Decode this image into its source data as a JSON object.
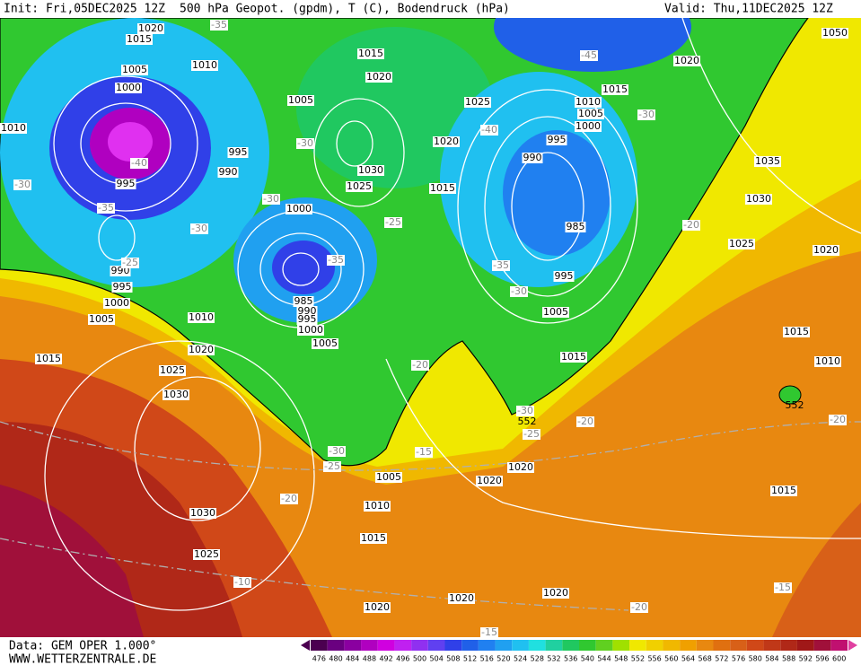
{
  "header": {
    "init": "Init: Fri,05DEC2025 12Z",
    "title": "500 hPa Geopot. (gpdm), T (C), Bodendruck (hPa)",
    "valid": "Valid: Thu,11DEC2025 12Z"
  },
  "footer": {
    "data": "Data: GEM OPER 1.000°",
    "site": "WWW.WETTERZENTRALE.DE"
  },
  "scale": {
    "labels": [
      476,
      480,
      484,
      488,
      492,
      496,
      500,
      504,
      508,
      512,
      516,
      520,
      524,
      528,
      532,
      536,
      540,
      544,
      548,
      552,
      556,
      560,
      564,
      568,
      572,
      576,
      580,
      584,
      588,
      592,
      596,
      600
    ],
    "colors": [
      "#4b0050",
      "#6a0080",
      "#8a00a0",
      "#b000c0",
      "#d000e0",
      "#c020f0",
      "#9030f0",
      "#6040f0",
      "#3040e8",
      "#2060e8",
      "#2080f0",
      "#20a0f0",
      "#20c0f0",
      "#20e0e0",
      "#20d0a0",
      "#20c860",
      "#30c830",
      "#60d020",
      "#a0e000",
      "#f0e800",
      "#f0d000",
      "#f0b800",
      "#f0a000",
      "#e88810",
      "#e07010",
      "#d86018",
      "#d04818",
      "#c03818",
      "#b02818",
      "#a01818",
      "#a0103a",
      "#c01070"
    ]
  },
  "map": {
    "pressure_labels": [
      "1015",
      "1020",
      "1005",
      "1000",
      "1010",
      "1015",
      "1020",
      "1005",
      "1025",
      "1020",
      "1030",
      "1025",
      "1015",
      "1000",
      "995",
      "990",
      "995",
      "990",
      "995",
      "1000",
      "1005",
      "1010",
      "1020",
      "1015",
      "1025",
      "1030",
      "985",
      "990",
      "995",
      "1000",
      "1005",
      "1020",
      "1015",
      "1010",
      "1005",
      "1000",
      "995",
      "990",
      "985",
      "995",
      "1005",
      "1015",
      "1050",
      "1035",
      "1030",
      "1025",
      "1020",
      "1015",
      "1010",
      "1020",
      "1020",
      "1005",
      "1010",
      "1015",
      "1030",
      "1025",
      "1020",
      "1020",
      "1020",
      "1015",
      "1010"
    ],
    "temperature_labels": [
      "-35",
      "-45",
      "-30",
      "-40",
      "-30",
      "-30",
      "-25",
      "-40",
      "-30",
      "-35",
      "-30",
      "-25",
      "-35",
      "-35",
      "-30",
      "-20",
      "-20",
      "-30",
      "-25",
      "-20",
      "-30",
      "-25",
      "-15",
      "-20",
      "-10",
      "-20",
      "-15",
      "-20",
      "-15"
    ],
    "contour_labels": [
      "552",
      "552"
    ]
  }
}
